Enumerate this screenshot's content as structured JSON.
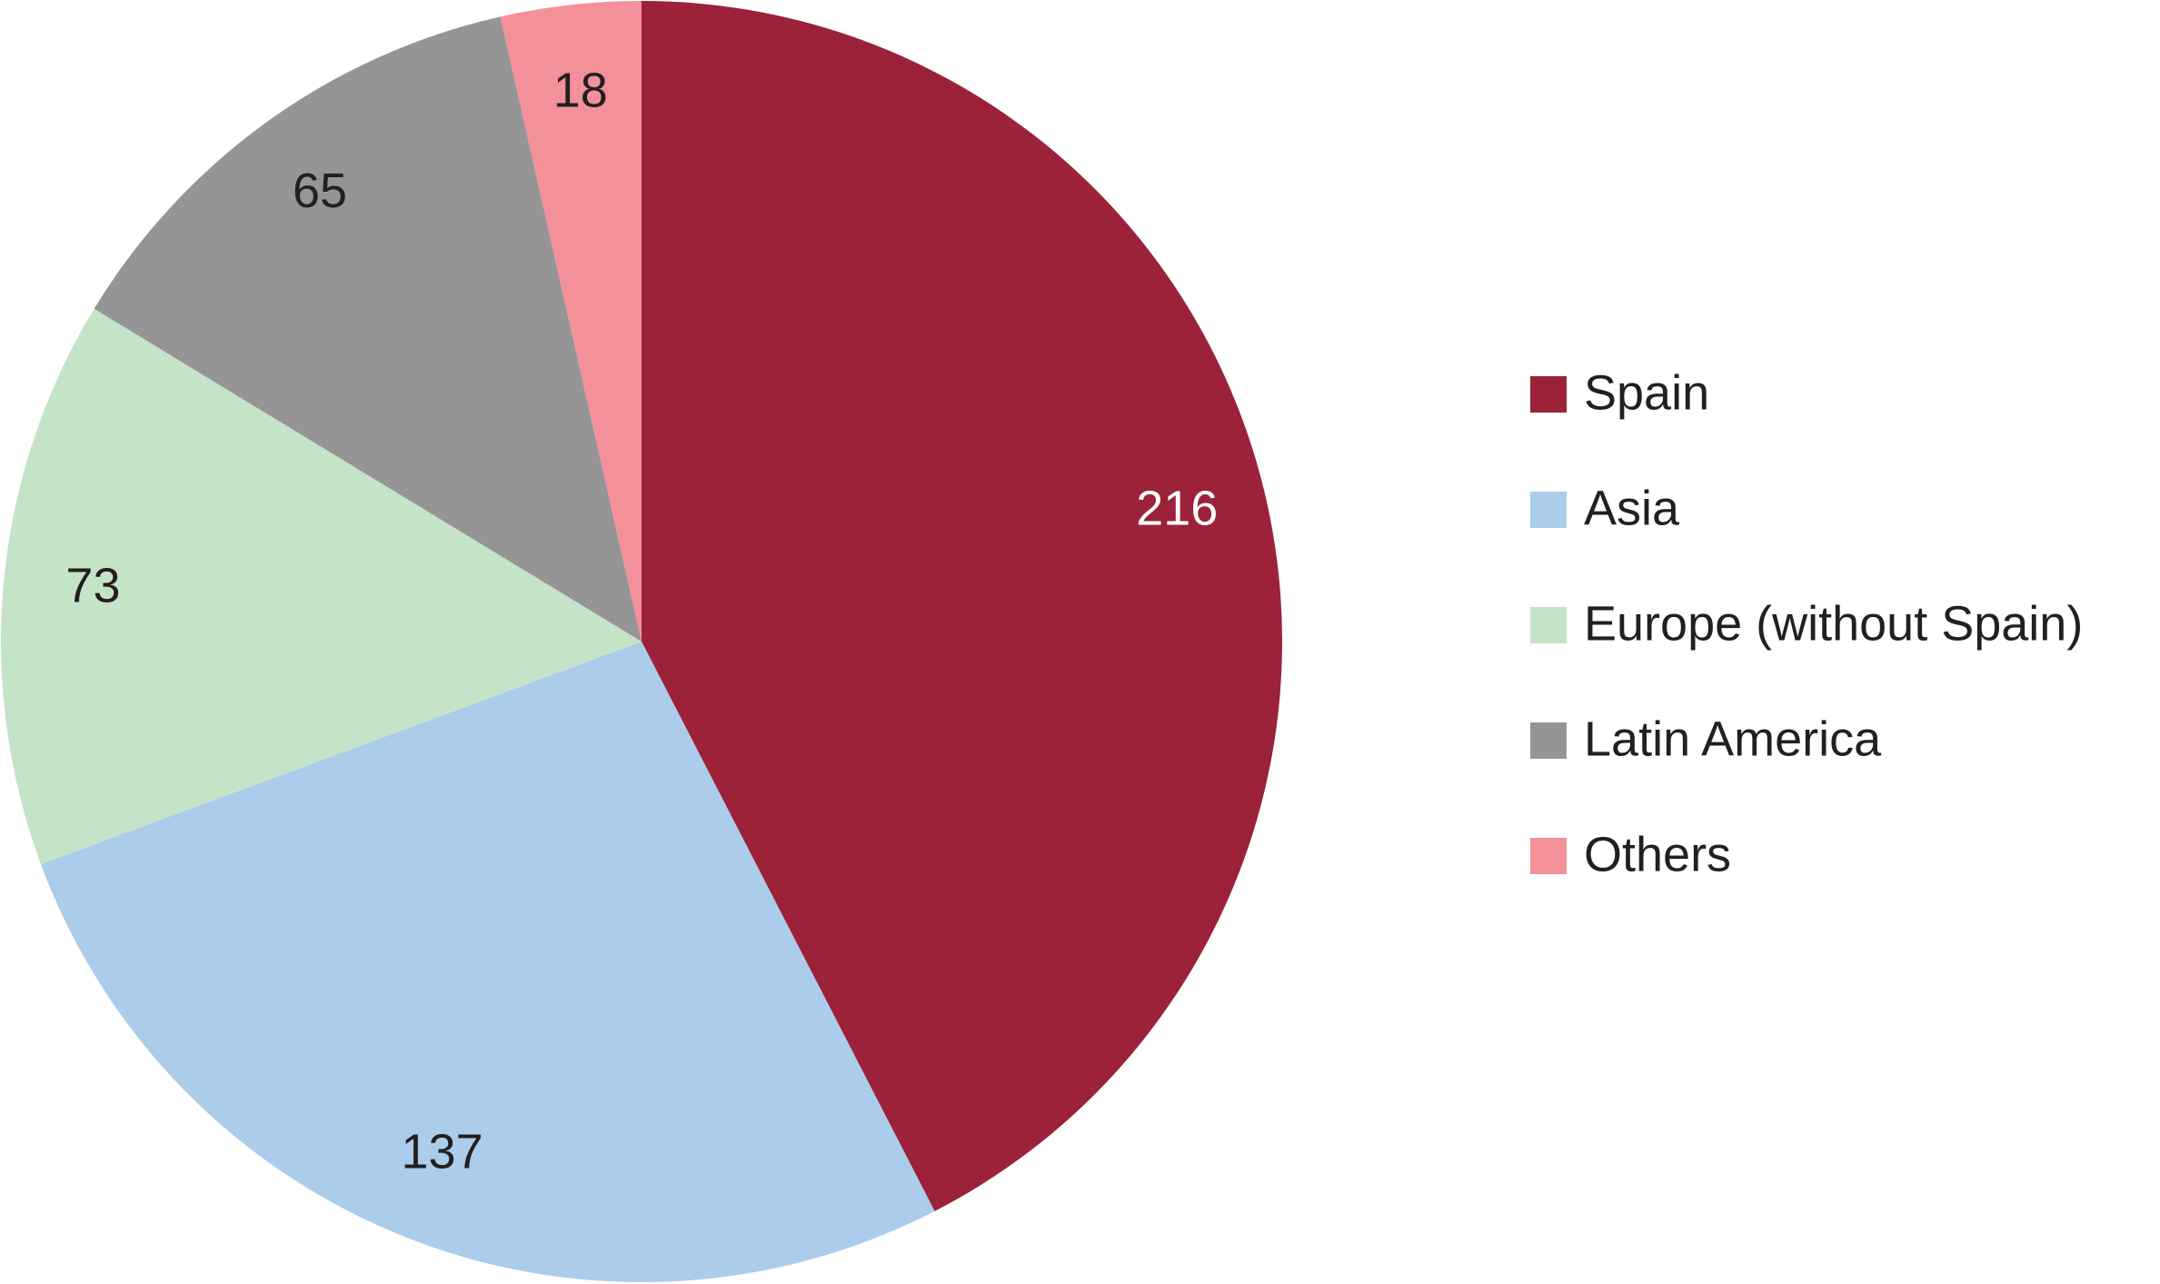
{
  "chart_data": {
    "type": "pie",
    "categories": [
      "Spain",
      "Asia",
      "Europe (without Spain)",
      "Latin America",
      "Others"
    ],
    "values": [
      216,
      137,
      73,
      65,
      18
    ],
    "colors": [
      "#9b2238",
      "#acccec",
      "#c5e4c7",
      "#959595",
      "#f4909a"
    ],
    "legend": "right"
  }
}
